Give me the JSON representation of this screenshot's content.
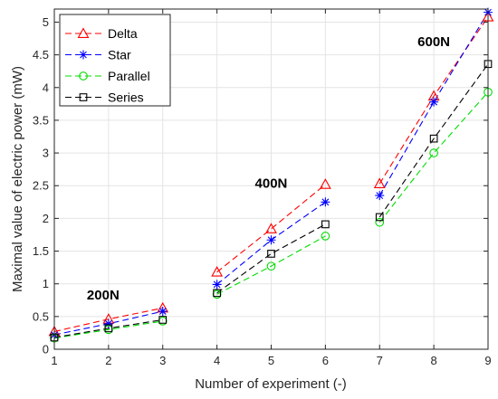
{
  "chart_data": {
    "type": "line",
    "xlabel": "Number of experiment (-)",
    "ylabel": "Maximal value of electric power (mW)",
    "xlim": [
      1,
      9
    ],
    "ylim": [
      0,
      5.2
    ],
    "grid": true,
    "legend_position": "top-left",
    "x_ticks": [
      "1",
      "2",
      "3",
      "4",
      "5",
      "6",
      "7",
      "8",
      "9"
    ],
    "y_ticks": [
      "0",
      "0.5",
      "1",
      "1.5",
      "2",
      "2.5",
      "3",
      "3.5",
      "4",
      "4.5",
      "5"
    ],
    "groups": [
      [
        1,
        2,
        3
      ],
      [
        4,
        5,
        6
      ],
      [
        7,
        8,
        9
      ]
    ],
    "series": [
      {
        "name": "Delta",
        "color": "#ff0000",
        "marker": "triangle",
        "x": [
          1,
          2,
          3,
          4,
          5,
          6,
          7,
          8,
          9
        ],
        "values": [
          0.27,
          0.46,
          0.63,
          1.18,
          1.84,
          2.52,
          2.53,
          3.87,
          5.08
        ]
      },
      {
        "name": "Star",
        "color": "#0000ff",
        "marker": "asterisk",
        "x": [
          1,
          2,
          3,
          4,
          5,
          6,
          7,
          8,
          9
        ],
        "values": [
          0.22,
          0.39,
          0.58,
          0.99,
          1.67,
          2.25,
          2.35,
          3.78,
          5.15
        ]
      },
      {
        "name": "Parallel",
        "color": "#00dd00",
        "marker": "circle",
        "x": [
          1,
          2,
          3,
          4,
          5,
          6,
          7,
          8,
          9
        ],
        "values": [
          0.17,
          0.3,
          0.43,
          0.84,
          1.27,
          1.73,
          1.94,
          3.0,
          3.93
        ]
      },
      {
        "name": "Series",
        "color": "#000000",
        "marker": "square",
        "x": [
          1,
          2,
          3,
          4,
          5,
          6,
          7,
          8,
          9
        ],
        "values": [
          0.18,
          0.32,
          0.45,
          0.86,
          1.46,
          1.91,
          2.02,
          3.22,
          4.36
        ]
      }
    ],
    "annotations": [
      {
        "text": "200N",
        "x": 1.6,
        "y": 0.76
      },
      {
        "text": "400N",
        "x": 4.7,
        "y": 2.47
      },
      {
        "text": "600N",
        "x": 7.7,
        "y": 4.63
      }
    ]
  }
}
